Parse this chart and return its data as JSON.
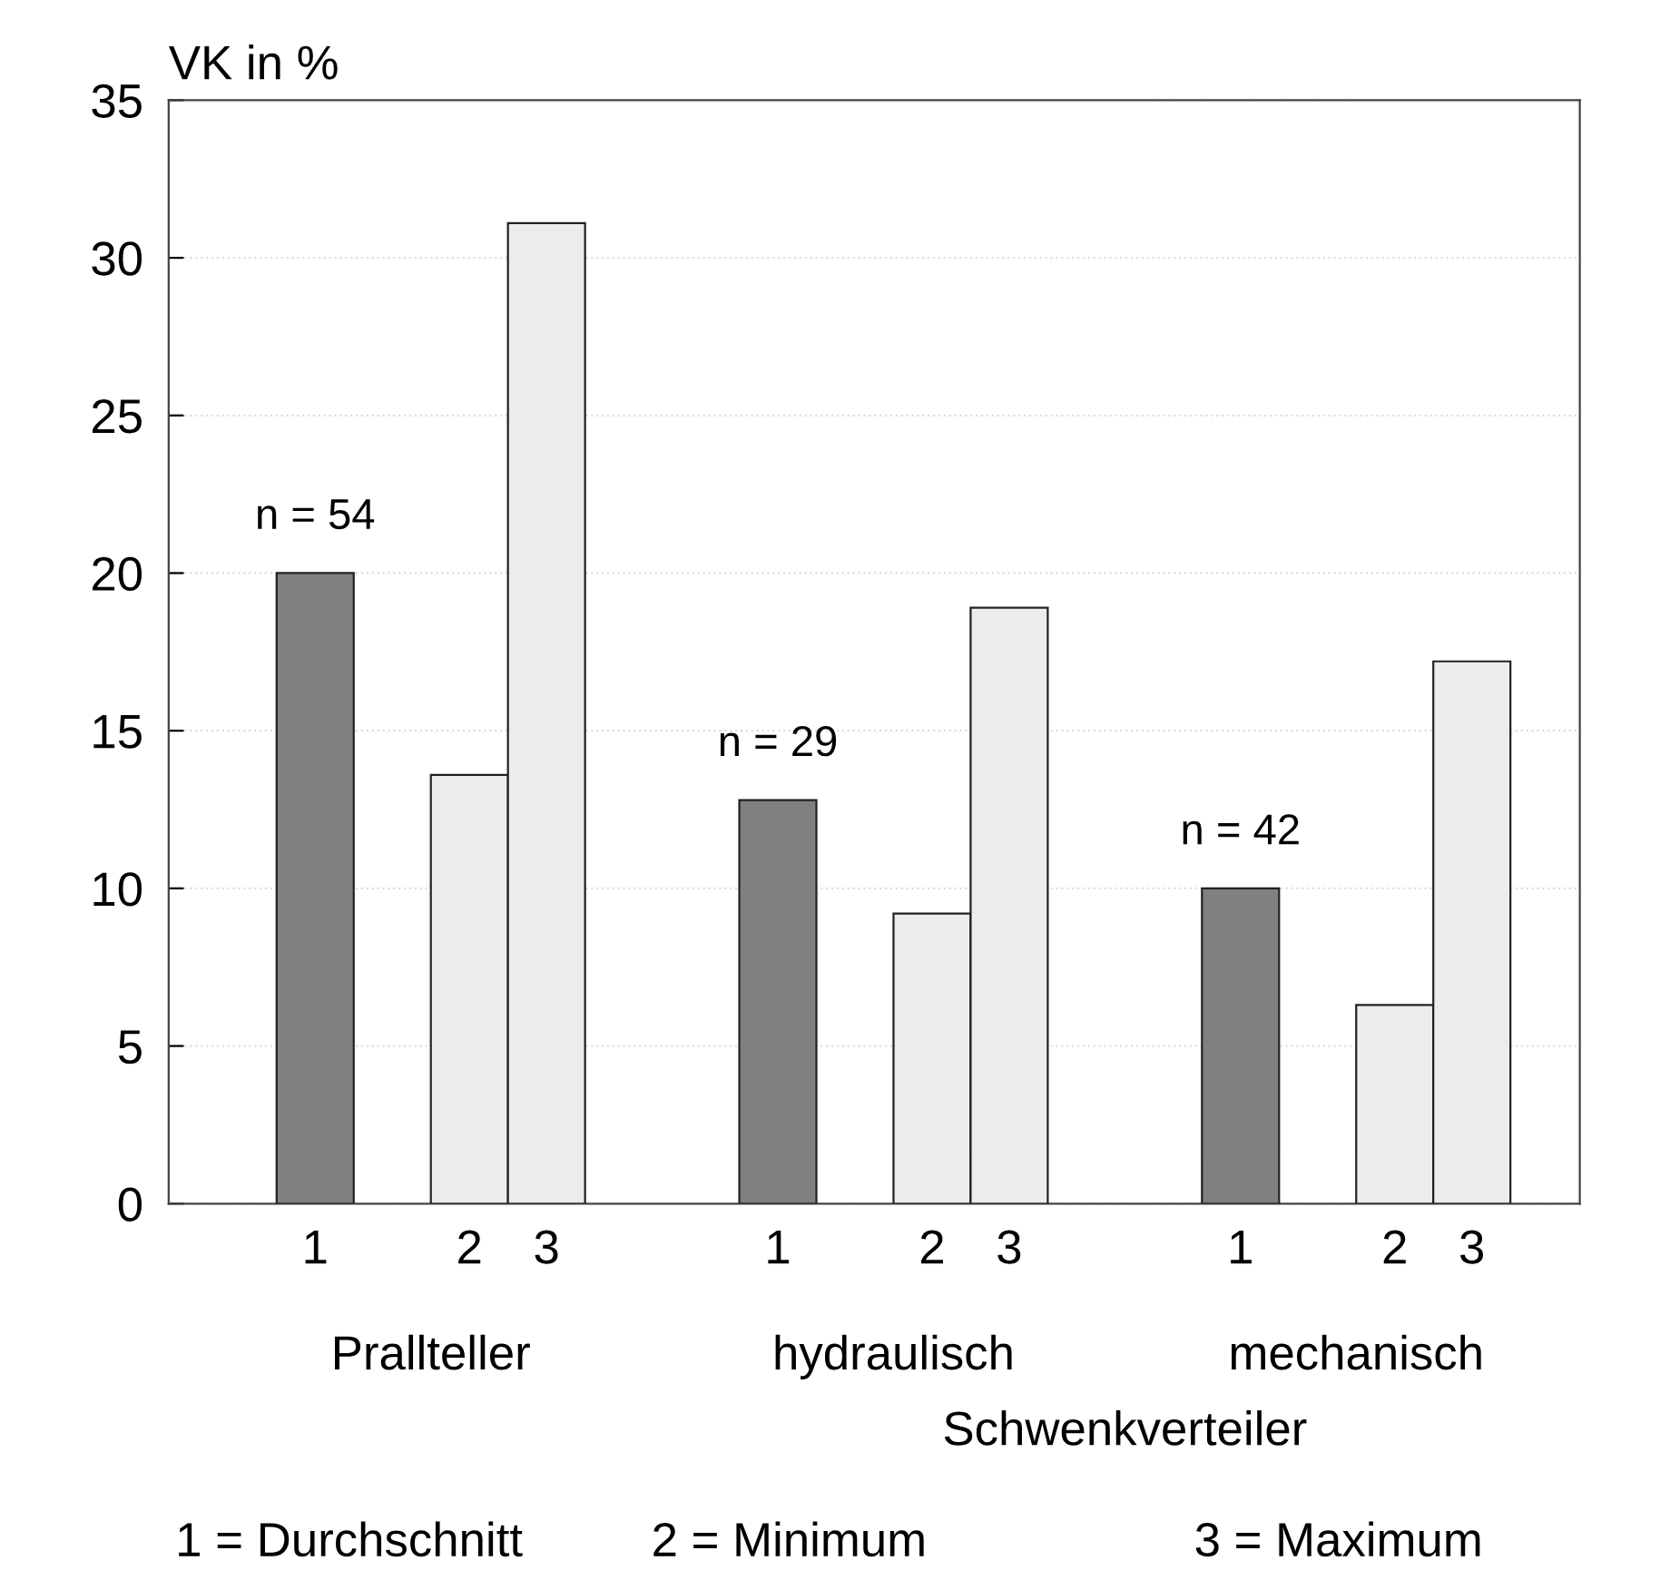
{
  "chart_data": {
    "type": "bar",
    "ylabel": "VK in %",
    "categories": [
      "1",
      null,
      "2",
      "3",
      null,
      null,
      "1",
      null,
      "2",
      "3",
      null,
      null,
      "1",
      null,
      "2",
      "3"
    ],
    "values": [
      20,
      null,
      13.6,
      31.1,
      null,
      null,
      12.8,
      null,
      9.2,
      18.9,
      null,
      null,
      10,
      null,
      6.3,
      17.2
    ],
    "colors": [
      "#808080",
      null,
      "#ececec",
      "#ececec",
      null,
      null,
      "#808080",
      null,
      "#ececec",
      "#ececec",
      null,
      null,
      "#808080",
      null,
      "#ececec",
      "#ececec"
    ],
    "ylim": [
      0,
      35
    ],
    "yticks": [
      0,
      5,
      10,
      15,
      20,
      25,
      30,
      35
    ],
    "grid": "y",
    "annotations": [
      "n = 54",
      "n = 29",
      "n = 42",
      "Prallteller",
      "hydraulisch",
      "mechanisch",
      "Schwenkverteiler",
      "1 = Durchschnitt",
      "2 = Minimum",
      "3 = Maximum"
    ]
  }
}
